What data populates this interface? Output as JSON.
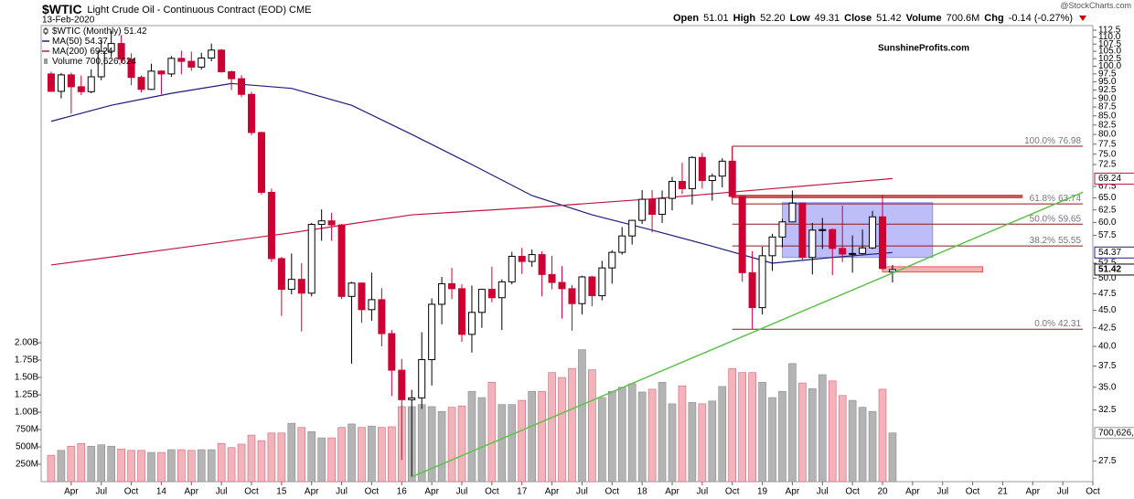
{
  "chart_data": {
    "type": "candlestick",
    "title": "$WTIC",
    "subtitle": "Light Crude Oil - Continuous Contract (EOD) CME",
    "date": "13-Feb-2020",
    "source": "@StockCharts.com",
    "watermark": "SunshineProfits.com",
    "watermark_color": "#cc0000",
    "quote": [
      {
        "label": "Open",
        "value": "51.01"
      },
      {
        "label": "High",
        "value": "52.20"
      },
      {
        "label": "Low",
        "value": "49.31"
      },
      {
        "label": "Close",
        "value": "51.42"
      },
      {
        "label": "Volume",
        "value": "700.6M"
      },
      {
        "label": "Chg",
        "value": "-0.14 (-0.27%)"
      }
    ],
    "name": "$WTIC (Monthly)",
    "up_color": "#ffffff",
    "up_stroke": "#000000",
    "down_color": "#cc0033",
    "x": [
      "2013-02",
      "2013-03",
      "2013-04",
      "2013-05",
      "2013-06",
      "2013-07",
      "2013-08",
      "2013-09",
      "2013-10",
      "2013-11",
      "2013-12",
      "2014-01",
      "2014-02",
      "2014-03",
      "2014-04",
      "2014-05",
      "2014-06",
      "2014-07",
      "2014-08",
      "2014-09",
      "2014-10",
      "2014-11",
      "2014-12",
      "2015-01",
      "2015-02",
      "2015-03",
      "2015-04",
      "2015-05",
      "2015-06",
      "2015-07",
      "2015-08",
      "2015-09",
      "2015-10",
      "2015-11",
      "2015-12",
      "2016-01",
      "2016-02",
      "2016-03",
      "2016-04",
      "2016-05",
      "2016-06",
      "2016-07",
      "2016-08",
      "2016-09",
      "2016-10",
      "2016-11",
      "2016-12",
      "2017-01",
      "2017-02",
      "2017-03",
      "2017-04",
      "2017-05",
      "2017-06",
      "2017-07",
      "2017-08",
      "2017-09",
      "2017-10",
      "2017-11",
      "2017-12",
      "2018-01",
      "2018-02",
      "2018-03",
      "2018-04",
      "2018-05",
      "2018-06",
      "2018-07",
      "2018-08",
      "2018-09",
      "2018-10",
      "2018-11",
      "2018-12",
      "2019-01",
      "2019-02",
      "2019-03",
      "2019-04",
      "2019-05",
      "2019-06",
      "2019-07",
      "2019-08",
      "2019-09",
      "2019-10",
      "2019-11",
      "2019-12",
      "2020-01",
      "2020-02"
    ],
    "open": [
      97.5,
      92.1,
      97.2,
      93.5,
      92.0,
      96.6,
      105.0,
      107.7,
      102.3,
      96.4,
      92.7,
      98.4,
      97.5,
      102.6,
      101.6,
      99.7,
      102.7,
      105.4,
      98.2,
      96.0,
      91.2,
      80.5,
      66.2,
      53.3,
      48.2,
      49.8,
      47.6,
      59.6,
      60.3,
      59.5,
      47.1,
      49.2,
      45.1,
      46.6,
      41.7,
      37.0,
      33.6,
      33.8,
      38.3,
      45.9,
      49.1,
      48.3,
      41.6,
      44.7,
      48.2,
      46.9,
      49.4,
      53.7,
      52.8,
      54.0,
      50.6,
      49.3,
      48.3,
      46.0,
      50.2,
      47.2,
      51.7,
      54.4,
      57.4,
      60.4,
      64.7,
      61.6,
      64.9,
      68.6,
      67.0,
      74.2,
      68.8,
      69.8,
      73.3,
      65.3,
      50.9,
      45.4,
      53.8,
      57.2,
      60.1,
      63.9,
      53.5,
      58.5,
      58.6,
      55.1,
      54.1,
      54.2,
      55.2,
      61.1,
      51.01
    ],
    "high": [
      98.2,
      97.8,
      97.9,
      97.0,
      99.0,
      108.9,
      112.2,
      110.7,
      104.3,
      97.0,
      100.8,
      98.7,
      103.4,
      105.2,
      104.9,
      104.5,
      107.7,
      105.8,
      98.6,
      97.1,
      92.0,
      80.7,
      67.0,
      53.6,
      54.2,
      52.5,
      59.9,
      62.6,
      61.9,
      59.7,
      49.4,
      49.3,
      50.9,
      48.4,
      42.2,
      38.4,
      34.7,
      41.9,
      46.8,
      50.2,
      51.7,
      49.0,
      48.8,
      48.3,
      51.9,
      49.8,
      54.5,
      55.2,
      54.9,
      54.6,
      53.8,
      52.0,
      48.9,
      50.4,
      50.4,
      52.9,
      54.8,
      59.1,
      60.5,
      66.7,
      66.7,
      66.6,
      69.6,
      72.9,
      74.5,
      75.3,
      70.4,
      74.0,
      76.9,
      65.4,
      54.6,
      55.4,
      57.8,
      60.7,
      66.6,
      63.9,
      59.9,
      60.9,
      58.8,
      63.4,
      57.5,
      58.6,
      62.3,
      65.7,
      52.2
    ],
    "low": [
      92.0,
      90.0,
      85.6,
      91.0,
      91.5,
      95.5,
      103.0,
      101.0,
      94.0,
      91.8,
      92.5,
      91.2,
      96.6,
      97.4,
      98.5,
      98.9,
      101.6,
      97.9,
      92.5,
      90.4,
      79.8,
      65.7,
      52.7,
      44.2,
      47.4,
      42.0,
      47.1,
      56.5,
      56.5,
      46.7,
      37.8,
      43.2,
      43.5,
      40.0,
      34.0,
      27.6,
      26.1,
      32.6,
      35.2,
      43.0,
      46.7,
      40.6,
      39.2,
      42.5,
      46.2,
      42.2,
      49.0,
      50.7,
      51.9,
      47.1,
      48.2,
      43.8,
      42.1,
      44.4,
      45.6,
      46.5,
      49.1,
      54.0,
      55.8,
      59.7,
      58.1,
      59.9,
      62.4,
      65.8,
      63.6,
      67.0,
      64.4,
      67.3,
      64.9,
      49.4,
      42.3,
      44.4,
      51.2,
      55.3,
      60.1,
      53.0,
      50.6,
      55.0,
      50.5,
      52.7,
      50.9,
      54.0,
      55.0,
      51.3,
      49.31
    ],
    "close": [
      92.1,
      97.2,
      93.5,
      92.0,
      96.6,
      105.0,
      107.7,
      102.3,
      96.4,
      92.7,
      98.4,
      97.5,
      102.6,
      101.6,
      99.7,
      102.7,
      105.4,
      98.2,
      96.0,
      91.2,
      80.5,
      66.2,
      53.3,
      48.2,
      49.8,
      47.6,
      59.6,
      60.3,
      59.5,
      47.1,
      49.2,
      45.1,
      46.6,
      41.7,
      37.0,
      33.6,
      33.8,
      38.3,
      45.9,
      49.1,
      48.3,
      41.6,
      44.7,
      48.2,
      46.9,
      49.4,
      53.7,
      52.8,
      54.0,
      50.6,
      49.3,
      48.3,
      46.0,
      50.2,
      47.2,
      51.7,
      54.4,
      57.4,
      60.4,
      64.7,
      61.6,
      64.9,
      68.6,
      67.0,
      74.2,
      68.8,
      69.8,
      73.3,
      65.3,
      50.9,
      45.4,
      53.8,
      57.2,
      60.1,
      63.9,
      53.5,
      58.5,
      58.6,
      55.1,
      54.1,
      54.2,
      55.2,
      61.1,
      51.6,
      51.42
    ],
    "volume": {
      "name": "Volume",
      "axis": "y2",
      "up_color": "#b4b4b4",
      "up_stroke": "#8a8a8a",
      "down_color": "#f2b3bb",
      "down_stroke": "#cc6677",
      "legend_color": "#999999",
      "legend_label": "700,626,624",
      "values": [
        380000000,
        450000000,
        510000000,
        550000000,
        510000000,
        530000000,
        510000000,
        470000000,
        450000000,
        450000000,
        420000000,
        420000000,
        460000000,
        460000000,
        450000000,
        460000000,
        460000000,
        550000000,
        490000000,
        540000000,
        670000000,
        590000000,
        700000000,
        700000000,
        840000000,
        780000000,
        720000000,
        630000000,
        630000000,
        780000000,
        830000000,
        780000000,
        800000000,
        780000000,
        790000000,
        1080000000,
        1080000000,
        1110000000,
        1080000000,
        1010000000,
        1070000000,
        1090000000,
        1300000000,
        1210000000,
        1430000000,
        1110000000,
        1110000000,
        1170000000,
        1300000000,
        1300000000,
        1570000000,
        1500000000,
        1630000000,
        1900000000,
        1610000000,
        1210000000,
        1300000000,
        1360000000,
        1410000000,
        1290000000,
        1330000000,
        1430000000,
        1120000000,
        1380000000,
        1140000000,
        1120000000,
        1160000000,
        1370000000,
        1630000000,
        1570000000,
        1570000000,
        1430000000,
        1210000000,
        1300000000,
        1700000000,
        1420000000,
        1340000000,
        1540000000,
        1450000000,
        1240000000,
        1170000000,
        1070000000,
        1010000000,
        1330000000,
        700626624
      ]
    },
    "series": [
      {
        "name": "MA(50)",
        "color": "#1c1c80",
        "x": [
          "2013-02",
          "2013-08",
          "2014-02",
          "2014-08",
          "2015-02",
          "2015-08",
          "2016-02",
          "2016-08",
          "2017-02",
          "2017-08",
          "2018-02",
          "2018-08",
          "2019-02",
          "2019-08",
          "2020-02"
        ],
        "values": [
          83.5,
          88.0,
          91.5,
          94.5,
          93.0,
          88.0,
          80.0,
          72.5,
          65.5,
          61.5,
          58.5,
          55.5,
          52.5,
          53.5,
          54.37
        ]
      },
      {
        "name": "MA(200)",
        "color": "#c0143c",
        "x": [
          "2013-02",
          "2014-02",
          "2015-02",
          "2016-02",
          "2017-02",
          "2018-02",
          "2019-02",
          "2020-02"
        ],
        "values": [
          52.2,
          55.0,
          58.0,
          61.5,
          63.0,
          64.8,
          67.0,
          69.24
        ]
      }
    ],
    "fib": {
      "color": "#8b1a1a",
      "label_color": "#777777",
      "x": [
        "2018-10",
        "2021-09"
      ],
      "levels": [
        {
          "ratio": "100.0%",
          "value": 76.98
        },
        {
          "ratio": "61.8%",
          "value": 63.74
        },
        {
          "ratio": "50.0%",
          "value": 59.65
        },
        {
          "ratio": "38.2%",
          "value": 55.55
        },
        {
          "ratio": "0.0%",
          "value": 42.31
        }
      ]
    },
    "trendline": {
      "color": "#5cc24a",
      "x": [
        "2016-02",
        "2021-09"
      ],
      "values": [
        26.1,
        66.2
      ]
    },
    "resistance": {
      "color": "#c0393b",
      "x": [
        "2018-10",
        "2021-03"
      ],
      "value": 65.3
    },
    "support": {
      "color": "#f09090",
      "stroke": "#d04040",
      "x": [
        "2020-01",
        "2020-11"
      ],
      "values": [
        51.0,
        51.9
      ]
    },
    "range_box": {
      "color": "#5a5af0",
      "x": [
        "2019-03",
        "2020-06"
      ],
      "values": [
        53.5,
        64.0
      ]
    },
    "xlim": [
      "2013-01",
      "2021-10"
    ],
    "xticks": [
      {
        "value": "2013-04",
        "label": "Apr"
      },
      {
        "value": "2013-07",
        "label": "Jul"
      },
      {
        "value": "2013-10",
        "label": "Oct"
      },
      {
        "value": "2014-01",
        "label": "14"
      },
      {
        "value": "2014-04",
        "label": "Apr"
      },
      {
        "value": "2014-07",
        "label": "Jul"
      },
      {
        "value": "2014-10",
        "label": "Oct"
      },
      {
        "value": "2015-01",
        "label": "15"
      },
      {
        "value": "2015-04",
        "label": "Apr"
      },
      {
        "value": "2015-07",
        "label": "Jul"
      },
      {
        "value": "2015-10",
        "label": "Oct"
      },
      {
        "value": "2016-01",
        "label": "16"
      },
      {
        "value": "2016-04",
        "label": "Apr"
      },
      {
        "value": "2016-07",
        "label": "Jul"
      },
      {
        "value": "2016-10",
        "label": "Oct"
      },
      {
        "value": "2017-01",
        "label": "17"
      },
      {
        "value": "2017-04",
        "label": "Apr"
      },
      {
        "value": "2017-07",
        "label": "Jul"
      },
      {
        "value": "2017-10",
        "label": "Oct"
      },
      {
        "value": "2018-01",
        "label": "18"
      },
      {
        "value": "2018-04",
        "label": "Apr"
      },
      {
        "value": "2018-07",
        "label": "Jul"
      },
      {
        "value": "2018-10",
        "label": "Oct"
      },
      {
        "value": "2019-01",
        "label": "19"
      },
      {
        "value": "2019-04",
        "label": "Apr"
      },
      {
        "value": "2019-07",
        "label": "Jul"
      },
      {
        "value": "2019-10",
        "label": "Oct"
      },
      {
        "value": "2020-01",
        "label": "20"
      },
      {
        "value": "2020-04",
        "label": "Apr"
      },
      {
        "value": "2020-07",
        "label": "Jul"
      },
      {
        "value": "2020-10",
        "label": "Oct"
      },
      {
        "value": "2021-01",
        "label": "21"
      },
      {
        "value": "2021-04",
        "label": "Apr"
      },
      {
        "value": "2021-07",
        "label": "Jul"
      },
      {
        "value": "2021-10",
        "label": "Oct"
      }
    ],
    "ylog": true,
    "ylim": [
      25.7,
      114.2
    ],
    "yticks": [
      112.5,
      {
        "value": 110,
        "label": "110.0"
      },
      107.5,
      {
        "value": 105,
        "label": "105.0"
      },
      102.5,
      {
        "value": 100,
        "label": "100.0"
      },
      97.5,
      {
        "value": 95,
        "label": "95.0"
      },
      92.5,
      {
        "value": 90,
        "label": "90.0"
      },
      87.5,
      {
        "value": 85,
        "label": "85.0"
      },
      82.5,
      {
        "value": 80,
        "label": "80.0"
      },
      77.5,
      {
        "value": 75,
        "label": "75.0"
      },
      72.5,
      67.5,
      {
        "value": 65,
        "label": "65.0"
      },
      62.5,
      {
        "value": 60,
        "label": "60.0"
      },
      57.5,
      52.5,
      {
        "value": 50,
        "label": "50.0"
      },
      47.5,
      {
        "value": 45,
        "label": "45.0"
      },
      42.5,
      {
        "value": 40,
        "label": "40.0"
      },
      37.5,
      {
        "value": 35,
        "label": "35.0"
      },
      32.5,
      27.5
    ],
    "y2lim": [
      0,
      6566000000
    ],
    "y2ticks": [
      {
        "value": 250000000,
        "label": "250M"
      },
      {
        "value": 500000000,
        "label": "500M"
      },
      {
        "value": 750000000,
        "label": "750M"
      },
      {
        "value": 1000000000,
        "label": "1.00B"
      },
      {
        "value": 1250000000,
        "label": "1.25B"
      },
      {
        "value": 1500000000,
        "label": "1.50B"
      },
      {
        "value": 1750000000,
        "label": "1.75B"
      },
      {
        "value": 2000000000,
        "label": "2.00B"
      }
    ],
    "grid": false
  }
}
